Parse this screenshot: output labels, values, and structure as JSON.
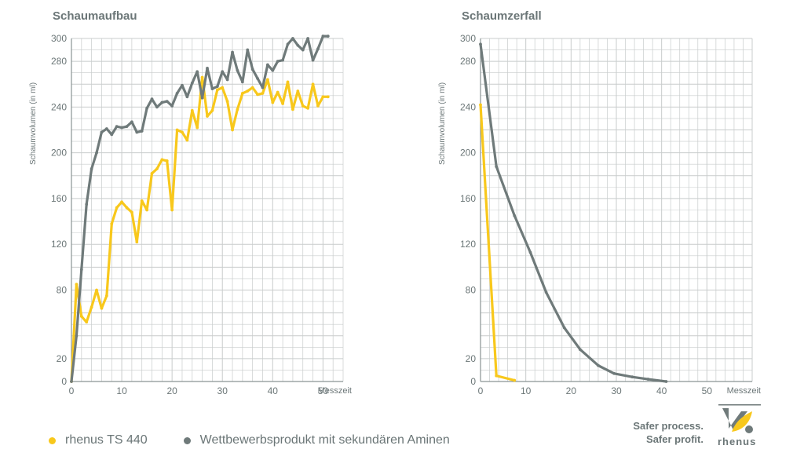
{
  "colors": {
    "rhenus": "#f8c81c",
    "competitor": "#6f7a7a",
    "grid": "#c8cccc",
    "text": "#6b7677"
  },
  "chart_data": [
    {
      "type": "line",
      "title": "Schaumaufbau",
      "ylabel": "Schaumvolumen (in ml)",
      "xlabel": "Messzeit",
      "ylim": [
        0,
        300
      ],
      "yticks": [
        20,
        80,
        120,
        160,
        200,
        240,
        280,
        300
      ],
      "xlim": [
        0,
        54
      ],
      "xticks": [
        0,
        10,
        20,
        30,
        40,
        50
      ],
      "grid": true,
      "series": [
        {
          "name": "rhenus TS 440",
          "color": "#f8c81c",
          "x": [
            0,
            1,
            2,
            3,
            4,
            5,
            6,
            7,
            8,
            9,
            10,
            11,
            12,
            13,
            14,
            15,
            16,
            17,
            18,
            19,
            20,
            21,
            22,
            23,
            24,
            25,
            26,
            27,
            28,
            29,
            30,
            31,
            32,
            33,
            34,
            35,
            36,
            37,
            38,
            39,
            40,
            41,
            42,
            43,
            44,
            45,
            46,
            47,
            48,
            49,
            50,
            51
          ],
          "y": [
            0,
            85,
            57,
            52,
            65,
            80,
            64,
            75,
            138,
            152,
            157,
            152,
            148,
            122,
            158,
            150,
            182,
            186,
            194,
            193,
            150,
            220,
            218,
            211,
            237,
            222,
            266,
            232,
            237,
            255,
            257,
            245,
            220,
            238,
            252,
            254,
            257,
            251,
            252,
            264,
            244,
            253,
            243,
            262,
            238,
            254,
            241,
            239,
            260,
            241,
            249,
            249
          ]
        },
        {
          "name": "Wettbewerbsprodukt mit sekundären Aminen",
          "color": "#6f7a7a",
          "x": [
            0,
            1,
            2,
            3,
            4,
            5,
            6,
            7,
            8,
            9,
            10,
            11,
            12,
            13,
            14,
            15,
            16,
            17,
            18,
            19,
            20,
            21,
            22,
            23,
            24,
            25,
            26,
            27,
            28,
            29,
            30,
            31,
            32,
            33,
            34,
            35,
            36,
            37,
            38,
            39,
            40,
            41,
            42,
            43,
            44,
            45,
            46,
            47,
            48,
            49,
            50,
            51
          ],
          "y": [
            0,
            40,
            98,
            155,
            186,
            200,
            218,
            221,
            216,
            223,
            222,
            223,
            227,
            218,
            219,
            239,
            247,
            240,
            244,
            245,
            241,
            252,
            259,
            249,
            261,
            271,
            248,
            274,
            256,
            258,
            271,
            264,
            288,
            272,
            262,
            290,
            273,
            265,
            257,
            277,
            272,
            280,
            281,
            295,
            300,
            294,
            290,
            300,
            281,
            291,
            302,
            302
          ]
        }
      ]
    },
    {
      "type": "line",
      "title": "Schaumzerfall",
      "ylabel": "Schaumvolumen (in ml)",
      "xlabel": "Messzeit",
      "ylim": [
        0,
        300
      ],
      "yticks": [
        20,
        80,
        120,
        160,
        200,
        240,
        280,
        300
      ],
      "xlim": [
        0,
        60
      ],
      "xticks": [
        0,
        10,
        20,
        30,
        40,
        50
      ],
      "grid": true,
      "series": [
        {
          "name": "rhenus TS 440",
          "color": "#f8c81c",
          "x": [
            0,
            3.5,
            7.5
          ],
          "y": [
            242,
            5,
            1
          ]
        },
        {
          "name": "Wettbewerbsprodukt mit sekundären Aminen",
          "color": "#6f7a7a",
          "x": [
            0,
            3.5,
            7.5,
            11,
            14.5,
            18.5,
            22,
            26,
            29.5,
            33.5,
            37,
            41
          ],
          "y": [
            295,
            188,
            145,
            113,
            78,
            47,
            28,
            14,
            7,
            4,
            2,
            0
          ]
        }
      ]
    }
  ],
  "legend": [
    {
      "label": "rhenus TS 440",
      "color": "#f8c81c"
    },
    {
      "label": "Wettbewerbsprodukt mit sekundären Aminen",
      "color": "#6f7a7a"
    }
  ],
  "brand": {
    "line1": "Safer process.",
    "line2": "Safer profit.",
    "logo_text": "rhenus"
  }
}
